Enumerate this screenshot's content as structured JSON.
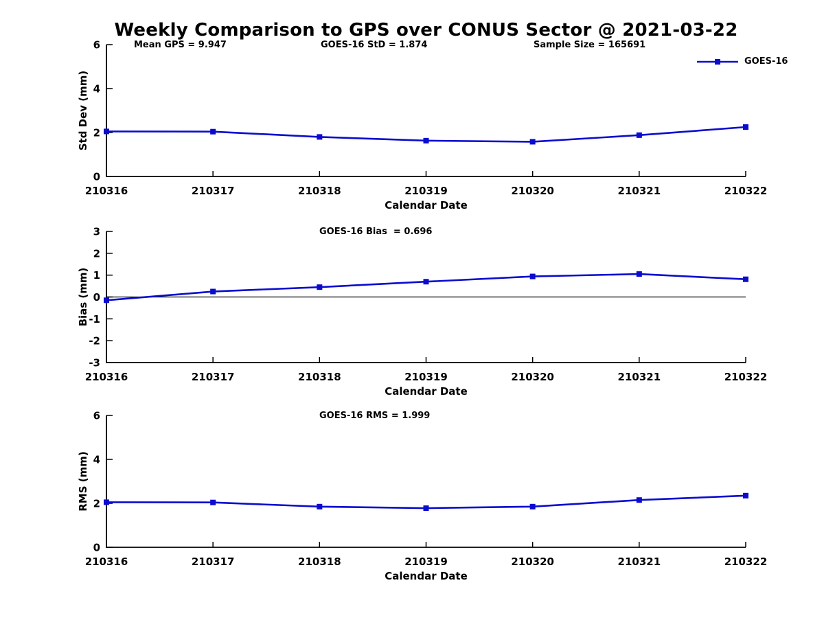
{
  "page": {
    "title": "Weekly Comparison to GPS over CONUS Sector @ 2021-03-22"
  },
  "colors": {
    "series": "#0b0bd0",
    "axis": "#000000",
    "zero_line": "#000000"
  },
  "legend": {
    "label": "GOES-16",
    "position": "top-right"
  },
  "chart_data": [
    {
      "type": "line",
      "name": "std-dev",
      "annotations": [
        "Mean GPS = 9.947",
        "GOES-16 StD = 1.874",
        "Sample Size = 165691"
      ],
      "categories": [
        "210316",
        "210317",
        "210318",
        "210319",
        "210320",
        "210321",
        "210322"
      ],
      "series": [
        {
          "name": "GOES-16",
          "values": [
            2.05,
            2.04,
            1.8,
            1.63,
            1.58,
            1.88,
            2.25
          ]
        }
      ],
      "xlabel": "Calendar Date",
      "ylabel": "Std Dev (mm)",
      "ylim": [
        0,
        6
      ],
      "yticks": [
        0,
        2,
        4,
        6
      ],
      "grid": false,
      "zero_line": false,
      "legend_entry": "GOES-16"
    },
    {
      "type": "line",
      "name": "bias",
      "title": "GOES-16 Bias  = 0.696",
      "categories": [
        "210316",
        "210317",
        "210318",
        "210319",
        "210320",
        "210321",
        "210322"
      ],
      "series": [
        {
          "name": "GOES-16",
          "values": [
            -0.15,
            0.25,
            0.45,
            0.7,
            0.94,
            1.05,
            0.81
          ]
        }
      ],
      "xlabel": "Calendar Date",
      "ylabel": "Bias (mm)",
      "ylim": [
        -3,
        3
      ],
      "yticks": [
        -3,
        -2,
        -1,
        0,
        1,
        2,
        3
      ],
      "grid": false,
      "zero_line": true
    },
    {
      "type": "line",
      "name": "rms",
      "title": "GOES-16 RMS = 1.999",
      "categories": [
        "210316",
        "210317",
        "210318",
        "210319",
        "210320",
        "210321",
        "210322"
      ],
      "series": [
        {
          "name": "GOES-16",
          "values": [
            2.05,
            2.04,
            1.85,
            1.78,
            1.85,
            2.15,
            2.35
          ]
        }
      ],
      "xlabel": "Calendar Date",
      "ylabel": "RMS (mm)",
      "ylim": [
        0,
        6
      ],
      "yticks": [
        0,
        2,
        4,
        6
      ],
      "grid": false,
      "zero_line": false
    }
  ]
}
